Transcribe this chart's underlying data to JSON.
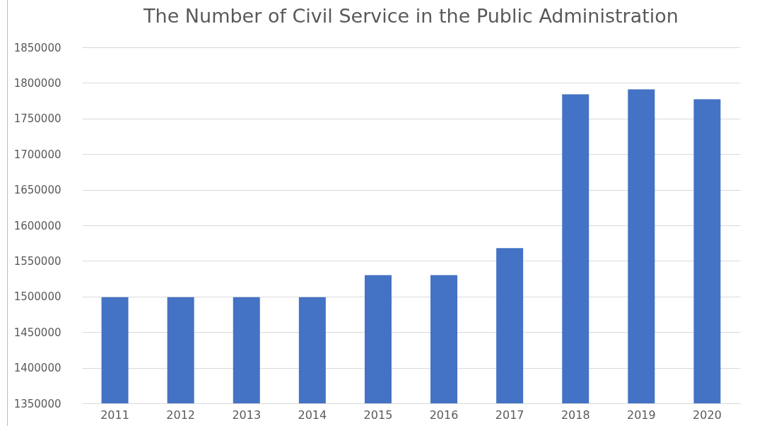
{
  "chart_data": {
    "type": "bar",
    "title": "The Number of Civil Service in the Public Administration",
    "categories": [
      "2011",
      "2012",
      "2013",
      "2014",
      "2015",
      "2016",
      "2017",
      "2018",
      "2019",
      "2020"
    ],
    "values": [
      1499000,
      1499000,
      1499000,
      1499000,
      1530000,
      1530000,
      1568000,
      1784000,
      1791000,
      1777000
    ],
    "color": "#4472c4",
    "ylim": [
      1350000,
      1850000
    ],
    "yticks": [
      1350000,
      1400000,
      1450000,
      1500000,
      1550000,
      1600000,
      1650000,
      1700000,
      1750000,
      1800000,
      1850000
    ],
    "grid": "y"
  }
}
